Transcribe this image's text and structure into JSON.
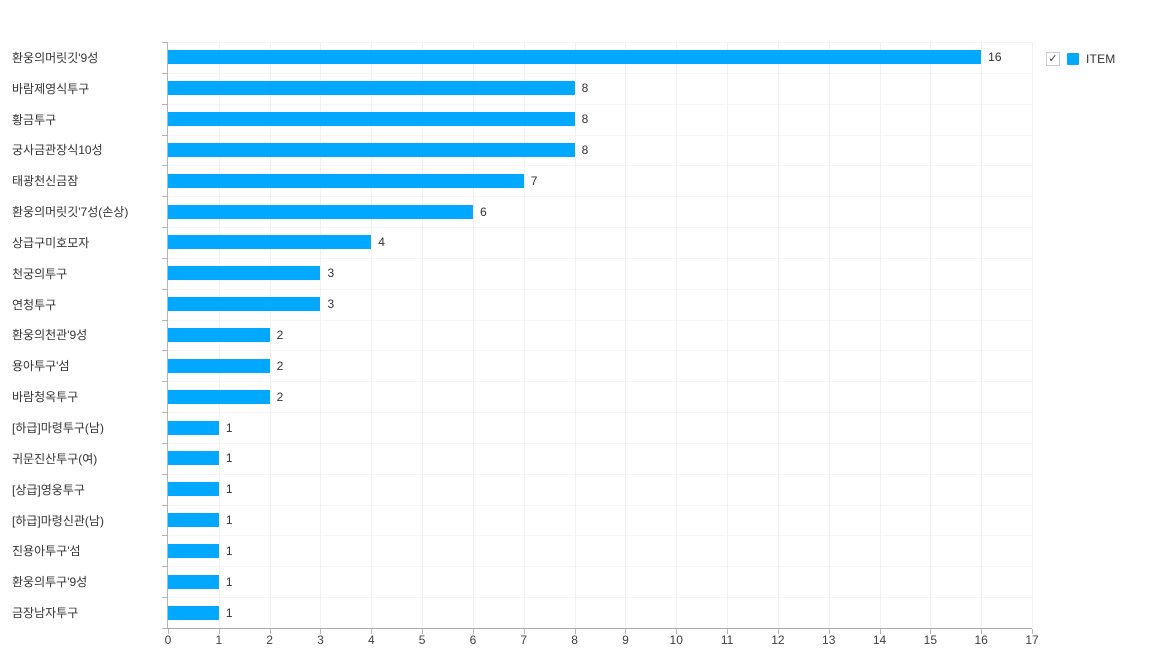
{
  "chart_data": {
    "type": "bar",
    "orientation": "horizontal",
    "title": "",
    "xlabel": "",
    "ylabel": "",
    "xlim": [
      0,
      17
    ],
    "x_ticks": [
      0,
      1,
      2,
      3,
      4,
      5,
      6,
      7,
      8,
      9,
      10,
      11,
      12,
      13,
      14,
      15,
      16,
      17
    ],
    "grid": true,
    "legend_position": "top-right",
    "categories": [
      "환웅의머릿깃'9성",
      "바람제영식투구",
      "황금투구",
      "궁사금관장식10성",
      "태광천신금잠",
      "환웅의머릿깃'7성(손상)",
      "상급구미호모자",
      "천궁의투구",
      "연청투구",
      "환웅의천관'9성",
      "용아투구'섬",
      "바람청옥투구",
      "[하급]마령투구(남)",
      "귀문진산투구(여)",
      "[상급]영웅투구",
      "[하급]마령신관(남)",
      "진용아투구'섬",
      "환웅의투구'9성",
      "금장남자투구"
    ],
    "series": [
      {
        "name": "ITEM",
        "color": "#00a9ff",
        "values": [
          16,
          8,
          8,
          8,
          7,
          6,
          4,
          3,
          3,
          2,
          2,
          2,
          1,
          1,
          1,
          1,
          1,
          1,
          1
        ]
      }
    ]
  },
  "legend": {
    "label": "ITEM",
    "checked": true,
    "checkmark": "✓",
    "swatch_color": "#00a9ff"
  },
  "colors": {
    "bar": "#00a9ff",
    "axis": "#b5b5b5",
    "grid": "#f1f1f1",
    "text": "#333333"
  }
}
